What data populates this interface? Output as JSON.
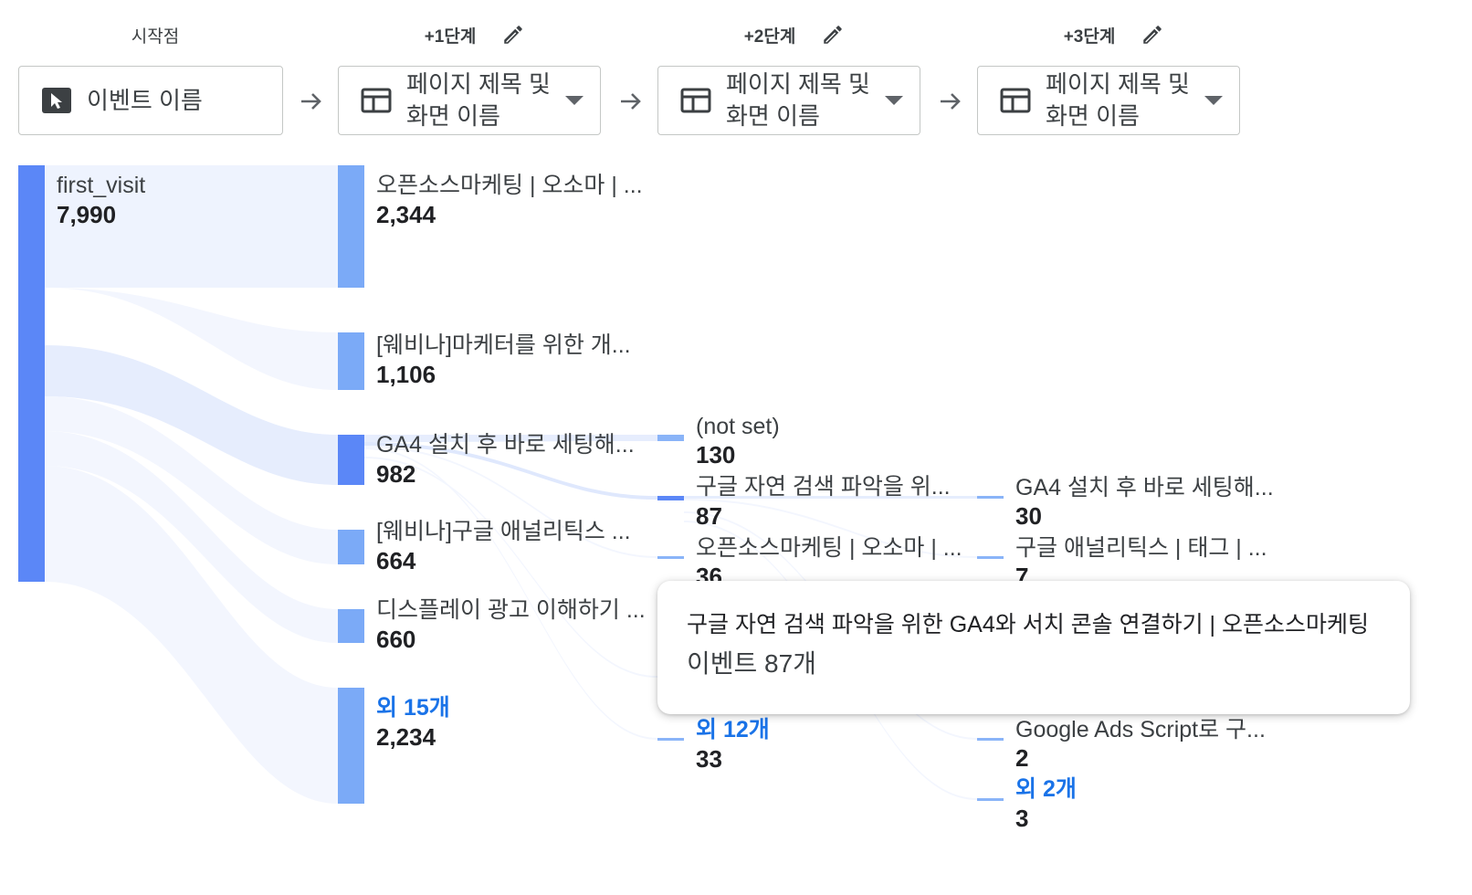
{
  "steps": [
    {
      "title": "시작점",
      "selector": "이벤트 이름",
      "icon": "cursor-icon",
      "has_dropdown": false,
      "editable": false
    },
    {
      "title": "+1단계",
      "selector": "페이지 제목 및 화면 이름",
      "icon": "page-icon",
      "has_dropdown": true,
      "editable": true
    },
    {
      "title": "+2단계",
      "selector": "페이지 제목 및 화면 이름",
      "icon": "page-icon",
      "has_dropdown": true,
      "editable": true
    },
    {
      "title": "+3단계",
      "selector": "페이지 제목 및 화면 이름",
      "icon": "page-icon",
      "has_dropdown": true,
      "editable": true
    }
  ],
  "start_node": {
    "label": "first_visit",
    "value": "7,990"
  },
  "step1_nodes": [
    {
      "label": "오픈소스마케팅 | 오소마 | ...",
      "value": "2,344"
    },
    {
      "label": "[웨비나]마케터를 위한 개...",
      "value": "1,106"
    },
    {
      "label": "GA4 설치 후 바로 세팅해...",
      "value": "982"
    },
    {
      "label": "[웨비나]구글 애널리틱스 ...",
      "value": "664"
    },
    {
      "label": "디스플레이 광고 이해하기 ...",
      "value": "660"
    },
    {
      "label": "외 15개",
      "value": "2,234"
    }
  ],
  "step2_nodes": [
    {
      "label": "(not set)",
      "value": "130"
    },
    {
      "label": "구글 자연 검색 파악을 위...",
      "value": "87"
    },
    {
      "label": "오픈소스마케팅 | 오소마 | ...",
      "value": "36"
    },
    {
      "label": "외 12개",
      "value": "33"
    }
  ],
  "step3_nodes": [
    {
      "label": "GA4 설치 후 바로 세팅해...",
      "value": "30"
    },
    {
      "label": "구글 애널리틱스 | 태그 | ...",
      "value": "7"
    },
    {
      "label": "Google Ads Script로 구...",
      "value": "2"
    },
    {
      "label": "외 2개",
      "value": "3"
    }
  ],
  "tooltip": {
    "title": "구글 자연 검색 파악을 위한 GA4와 서치 콘솔 연결하기 | 오픈소스마케팅",
    "detail": "이벤트 87개"
  },
  "colors": {
    "node_strong": "#5b87f7",
    "node": "#7baaf7",
    "flow": "#e8efff",
    "more_link": "#1a73e8"
  }
}
